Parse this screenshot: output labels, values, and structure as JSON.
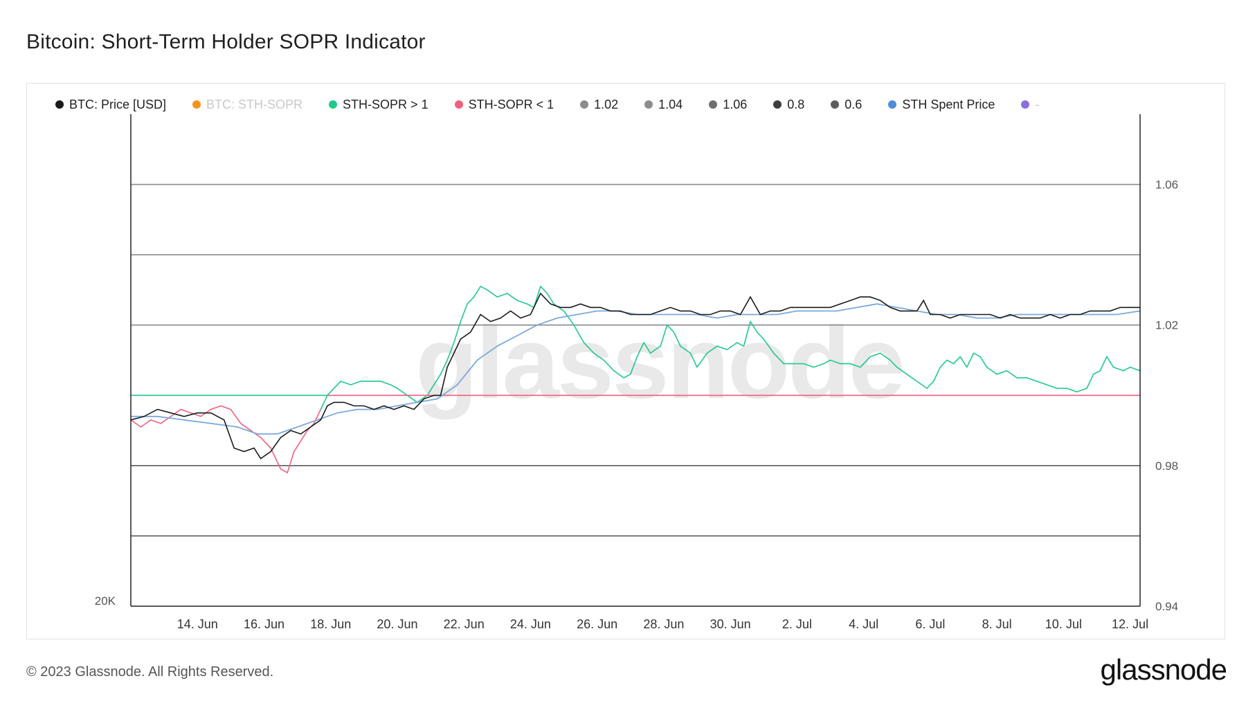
{
  "page": {
    "title": "Bitcoin: Short-Term Holder SOPR Indicator",
    "copyright": "© 2023 Glassnode. All Rights Reserved.",
    "brand": "glassnode",
    "watermark": "glassnode"
  },
  "legend": [
    {
      "label": "BTC: Price [USD]",
      "color": "#1a1a1a",
      "enabled": true
    },
    {
      "label": "BTC: STH-SOPR",
      "color": "#f7931a",
      "enabled": false
    },
    {
      "label": "STH-SOPR > 1",
      "color": "#1fc98a",
      "enabled": true
    },
    {
      "label": "STH-SOPR < 1",
      "color": "#f2607e",
      "enabled": true
    },
    {
      "label": "1.02",
      "color": "#8c8c8c",
      "enabled": true
    },
    {
      "label": "1.04",
      "color": "#8c8c8c",
      "enabled": true
    },
    {
      "label": "1.06",
      "color": "#6e6e6e",
      "enabled": true
    },
    {
      "label": "0.8",
      "color": "#3c3c3c",
      "enabled": true
    },
    {
      "label": "0.6",
      "color": "#5c5c5c",
      "enabled": true
    },
    {
      "label": "STH Spent Price",
      "color": "#4a8fd8",
      "enabled": true
    },
    {
      "label": "-",
      "color": "#8b6fe0",
      "enabled": false
    }
  ],
  "chart_data": {
    "type": "line",
    "x_ticks": [
      "14. Jun",
      "16. Jun",
      "18. Jun",
      "20. Jun",
      "22. Jun",
      "24. Jun",
      "26. Jun",
      "28. Jun",
      "30. Jun",
      "2. Jul",
      "4. Jul",
      "6. Jul",
      "8. Jul",
      "10. Jul",
      "12. Jul"
    ],
    "x_range_days": [
      12.0,
      42.3
    ],
    "right_axis": {
      "ticks": [
        "1.06",
        "1.02",
        "0.98",
        "0.94"
      ],
      "range": [
        0.94,
        1.08
      ]
    },
    "left_axis": {
      "ticks": [
        "20K"
      ]
    },
    "reference_lines": [
      {
        "value": 1.06,
        "color": "#8a8a8a"
      },
      {
        "value": 1.04,
        "color": "#8a8a8a"
      },
      {
        "value": 1.02,
        "color": "#8a8a8a"
      },
      {
        "value": 0.98,
        "color": "#5a5a5a"
      },
      {
        "value": 0.96,
        "color": "#5a5a5a"
      },
      {
        "value": 1.0,
        "color": "#f2a0b0"
      }
    ],
    "series": [
      {
        "name": "STH-SOPR",
        "color_above": "#1fc98a",
        "color_below": "#f2607e",
        "threshold": 1.0,
        "points": [
          [
            12.0,
            0.993
          ],
          [
            12.3,
            0.991
          ],
          [
            12.6,
            0.993
          ],
          [
            12.9,
            0.992
          ],
          [
            13.2,
            0.994
          ],
          [
            13.5,
            0.996
          ],
          [
            13.8,
            0.995
          ],
          [
            14.1,
            0.994
          ],
          [
            14.4,
            0.996
          ],
          [
            14.7,
            0.997
          ],
          [
            15.0,
            0.996
          ],
          [
            15.3,
            0.992
          ],
          [
            15.6,
            0.99
          ],
          [
            15.9,
            0.988
          ],
          [
            16.2,
            0.985
          ],
          [
            16.5,
            0.979
          ],
          [
            16.7,
            0.978
          ],
          [
            16.9,
            0.984
          ],
          [
            17.1,
            0.987
          ],
          [
            17.3,
            0.99
          ],
          [
            17.5,
            0.992
          ],
          [
            17.7,
            0.996
          ],
          [
            17.9,
            1.0
          ],
          [
            18.1,
            1.002
          ],
          [
            18.3,
            1.004
          ],
          [
            18.6,
            1.003
          ],
          [
            18.9,
            1.004
          ],
          [
            19.2,
            1.004
          ],
          [
            19.5,
            1.004
          ],
          [
            19.8,
            1.003
          ],
          [
            20.0,
            1.002
          ],
          [
            20.3,
            1.0
          ],
          [
            20.6,
            0.998
          ],
          [
            20.9,
            1.0
          ],
          [
            21.1,
            1.003
          ],
          [
            21.3,
            1.006
          ],
          [
            21.5,
            1.01
          ],
          [
            21.7,
            1.015
          ],
          [
            21.9,
            1.021
          ],
          [
            22.1,
            1.026
          ],
          [
            22.3,
            1.028
          ],
          [
            22.5,
            1.031
          ],
          [
            22.7,
            1.03
          ],
          [
            23.0,
            1.028
          ],
          [
            23.3,
            1.029
          ],
          [
            23.6,
            1.027
          ],
          [
            23.9,
            1.026
          ],
          [
            24.1,
            1.025
          ],
          [
            24.3,
            1.031
          ],
          [
            24.5,
            1.029
          ],
          [
            24.7,
            1.026
          ],
          [
            25.0,
            1.024
          ],
          [
            25.3,
            1.02
          ],
          [
            25.6,
            1.015
          ],
          [
            25.9,
            1.012
          ],
          [
            26.2,
            1.01
          ],
          [
            26.5,
            1.007
          ],
          [
            26.8,
            1.005
          ],
          [
            27.0,
            1.006
          ],
          [
            27.2,
            1.011
          ],
          [
            27.4,
            1.015
          ],
          [
            27.6,
            1.012
          ],
          [
            27.9,
            1.014
          ],
          [
            28.1,
            1.02
          ],
          [
            28.3,
            1.018
          ],
          [
            28.5,
            1.014
          ],
          [
            28.8,
            1.012
          ],
          [
            29.0,
            1.008
          ],
          [
            29.3,
            1.012
          ],
          [
            29.6,
            1.014
          ],
          [
            29.9,
            1.013
          ],
          [
            30.2,
            1.015
          ],
          [
            30.4,
            1.014
          ],
          [
            30.6,
            1.021
          ],
          [
            30.8,
            1.018
          ],
          [
            31.0,
            1.016
          ],
          [
            31.3,
            1.012
          ],
          [
            31.6,
            1.009
          ],
          [
            31.9,
            1.009
          ],
          [
            32.2,
            1.009
          ],
          [
            32.5,
            1.008
          ],
          [
            32.8,
            1.009
          ],
          [
            33.0,
            1.01
          ],
          [
            33.3,
            1.009
          ],
          [
            33.6,
            1.009
          ],
          [
            33.9,
            1.008
          ],
          [
            34.2,
            1.011
          ],
          [
            34.5,
            1.012
          ],
          [
            34.8,
            1.01
          ],
          [
            35.0,
            1.008
          ],
          [
            35.3,
            1.006
          ],
          [
            35.6,
            1.004
          ],
          [
            35.9,
            1.002
          ],
          [
            36.1,
            1.004
          ],
          [
            36.3,
            1.008
          ],
          [
            36.5,
            1.01
          ],
          [
            36.7,
            1.009
          ],
          [
            36.9,
            1.011
          ],
          [
            37.1,
            1.008
          ],
          [
            37.3,
            1.012
          ],
          [
            37.5,
            1.011
          ],
          [
            37.7,
            1.008
          ],
          [
            38.0,
            1.006
          ],
          [
            38.3,
            1.007
          ],
          [
            38.6,
            1.005
          ],
          [
            38.9,
            1.005
          ],
          [
            39.2,
            1.004
          ],
          [
            39.5,
            1.003
          ],
          [
            39.8,
            1.002
          ],
          [
            40.1,
            1.002
          ],
          [
            40.4,
            1.001
          ],
          [
            40.7,
            1.002
          ],
          [
            40.9,
            1.006
          ],
          [
            41.1,
            1.007
          ],
          [
            41.3,
            1.011
          ],
          [
            41.5,
            1.008
          ],
          [
            41.8,
            1.007
          ],
          [
            42.0,
            1.008
          ],
          [
            42.3,
            1.007
          ]
        ]
      },
      {
        "name": "BTC: Price [USD]",
        "color": "#1a1a1a",
        "points": [
          [
            12.0,
            0.993
          ],
          [
            12.4,
            0.994
          ],
          [
            12.8,
            0.996
          ],
          [
            13.2,
            0.995
          ],
          [
            13.6,
            0.994
          ],
          [
            14.0,
            0.995
          ],
          [
            14.4,
            0.995
          ],
          [
            14.8,
            0.993
          ],
          [
            15.1,
            0.985
          ],
          [
            15.4,
            0.984
          ],
          [
            15.7,
            0.985
          ],
          [
            15.9,
            0.982
          ],
          [
            16.2,
            0.984
          ],
          [
            16.5,
            0.988
          ],
          [
            16.8,
            0.99
          ],
          [
            17.1,
            0.989
          ],
          [
            17.4,
            0.991
          ],
          [
            17.7,
            0.993
          ],
          [
            17.9,
            0.997
          ],
          [
            18.1,
            0.998
          ],
          [
            18.4,
            0.998
          ],
          [
            18.7,
            0.997
          ],
          [
            19.0,
            0.997
          ],
          [
            19.3,
            0.996
          ],
          [
            19.6,
            0.997
          ],
          [
            19.9,
            0.996
          ],
          [
            20.2,
            0.997
          ],
          [
            20.5,
            0.996
          ],
          [
            20.8,
            0.999
          ],
          [
            21.1,
            1.0
          ],
          [
            21.3,
            1.0
          ],
          [
            21.5,
            1.008
          ],
          [
            21.7,
            1.012
          ],
          [
            21.9,
            1.016
          ],
          [
            22.2,
            1.018
          ],
          [
            22.5,
            1.023
          ],
          [
            22.8,
            1.021
          ],
          [
            23.1,
            1.022
          ],
          [
            23.4,
            1.024
          ],
          [
            23.7,
            1.022
          ],
          [
            24.0,
            1.023
          ],
          [
            24.3,
            1.029
          ],
          [
            24.6,
            1.026
          ],
          [
            24.9,
            1.025
          ],
          [
            25.2,
            1.025
          ],
          [
            25.5,
            1.026
          ],
          [
            25.8,
            1.025
          ],
          [
            26.1,
            1.025
          ],
          [
            26.4,
            1.024
          ],
          [
            26.7,
            1.024
          ],
          [
            27.0,
            1.023
          ],
          [
            27.3,
            1.023
          ],
          [
            27.6,
            1.023
          ],
          [
            27.9,
            1.024
          ],
          [
            28.2,
            1.025
          ],
          [
            28.5,
            1.024
          ],
          [
            28.8,
            1.024
          ],
          [
            29.1,
            1.023
          ],
          [
            29.4,
            1.023
          ],
          [
            29.7,
            1.024
          ],
          [
            30.0,
            1.024
          ],
          [
            30.3,
            1.023
          ],
          [
            30.6,
            1.028
          ],
          [
            30.9,
            1.023
          ],
          [
            31.2,
            1.024
          ],
          [
            31.5,
            1.024
          ],
          [
            31.8,
            1.025
          ],
          [
            32.1,
            1.025
          ],
          [
            32.4,
            1.025
          ],
          [
            32.7,
            1.025
          ],
          [
            33.0,
            1.025
          ],
          [
            33.3,
            1.026
          ],
          [
            33.6,
            1.027
          ],
          [
            33.9,
            1.028
          ],
          [
            34.2,
            1.028
          ],
          [
            34.5,
            1.027
          ],
          [
            34.8,
            1.025
          ],
          [
            35.1,
            1.024
          ],
          [
            35.4,
            1.024
          ],
          [
            35.6,
            1.024
          ],
          [
            35.8,
            1.027
          ],
          [
            36.0,
            1.023
          ],
          [
            36.3,
            1.023
          ],
          [
            36.6,
            1.022
          ],
          [
            36.9,
            1.023
          ],
          [
            37.2,
            1.023
          ],
          [
            37.5,
            1.023
          ],
          [
            37.8,
            1.023
          ],
          [
            38.1,
            1.022
          ],
          [
            38.4,
            1.023
          ],
          [
            38.7,
            1.022
          ],
          [
            39.0,
            1.022
          ],
          [
            39.3,
            1.022
          ],
          [
            39.6,
            1.023
          ],
          [
            39.9,
            1.022
          ],
          [
            40.2,
            1.023
          ],
          [
            40.5,
            1.023
          ],
          [
            40.8,
            1.024
          ],
          [
            41.1,
            1.024
          ],
          [
            41.4,
            1.024
          ],
          [
            41.7,
            1.025
          ],
          [
            42.0,
            1.025
          ],
          [
            42.3,
            1.025
          ]
        ]
      },
      {
        "name": "STH Spent Price",
        "color": "#7aa8dc",
        "points": [
          [
            12.0,
            0.994
          ],
          [
            12.8,
            0.994
          ],
          [
            13.6,
            0.993
          ],
          [
            14.4,
            0.992
          ],
          [
            15.2,
            0.991
          ],
          [
            15.8,
            0.989
          ],
          [
            16.4,
            0.989
          ],
          [
            17.0,
            0.991
          ],
          [
            17.6,
            0.993
          ],
          [
            18.2,
            0.995
          ],
          [
            18.8,
            0.996
          ],
          [
            19.4,
            0.996
          ],
          [
            20.0,
            0.997
          ],
          [
            20.6,
            0.998
          ],
          [
            21.2,
            0.999
          ],
          [
            21.8,
            1.003
          ],
          [
            22.4,
            1.01
          ],
          [
            23.0,
            1.014
          ],
          [
            23.6,
            1.017
          ],
          [
            24.2,
            1.02
          ],
          [
            24.8,
            1.022
          ],
          [
            25.4,
            1.023
          ],
          [
            26.0,
            1.024
          ],
          [
            26.6,
            1.024
          ],
          [
            27.2,
            1.023
          ],
          [
            27.8,
            1.023
          ],
          [
            28.4,
            1.023
          ],
          [
            29.0,
            1.023
          ],
          [
            29.6,
            1.022
          ],
          [
            30.2,
            1.023
          ],
          [
            30.8,
            1.023
          ],
          [
            31.4,
            1.023
          ],
          [
            32.0,
            1.024
          ],
          [
            32.6,
            1.024
          ],
          [
            33.2,
            1.024
          ],
          [
            33.8,
            1.025
          ],
          [
            34.4,
            1.026
          ],
          [
            35.0,
            1.025
          ],
          [
            35.6,
            1.024
          ],
          [
            36.2,
            1.023
          ],
          [
            36.8,
            1.023
          ],
          [
            37.4,
            1.022
          ],
          [
            38.0,
            1.022
          ],
          [
            38.6,
            1.023
          ],
          [
            39.2,
            1.023
          ],
          [
            39.8,
            1.023
          ],
          [
            40.4,
            1.023
          ],
          [
            41.0,
            1.023
          ],
          [
            41.6,
            1.023
          ],
          [
            42.3,
            1.024
          ]
        ]
      }
    ]
  }
}
